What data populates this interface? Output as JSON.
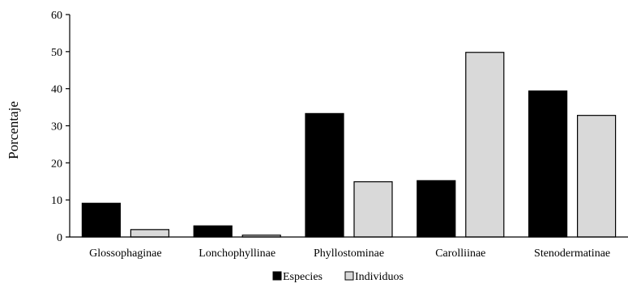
{
  "chart_data": {
    "type": "bar",
    "title": "",
    "xlabel": "",
    "ylabel": "Porcentaje",
    "ylim": [
      0,
      60
    ],
    "yticks": [
      0,
      10,
      20,
      30,
      40,
      50,
      60
    ],
    "categories": [
      "Glossophaginae",
      "Lonchophyllinae",
      "Phyllostominae",
      "Carolliinae",
      "Stenodermatinae"
    ],
    "series": [
      {
        "name": "Especies",
        "values": [
          9.1,
          3.0,
          33.3,
          15.2,
          39.4
        ],
        "color": "#000000"
      },
      {
        "name": "Individuos",
        "values": [
          2.0,
          0.5,
          14.9,
          49.8,
          32.8
        ],
        "color": "#d9d9d9"
      }
    ],
    "legend_position": "bottom",
    "grid": false
  }
}
